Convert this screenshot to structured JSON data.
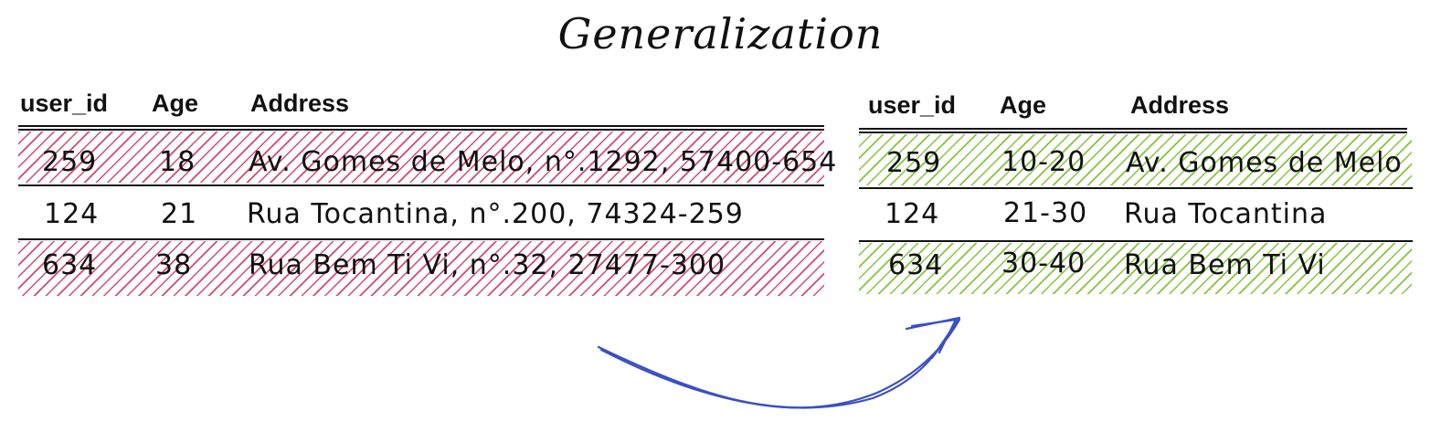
{
  "title": "Generalization",
  "colors": {
    "original_hatch": "#cd2855",
    "generalized_hatch": "#78be28",
    "arrow": "#3a4fc4",
    "ink": "#111111"
  },
  "original_table": {
    "headers": [
      "user_id",
      "Age",
      "Address"
    ],
    "rows": [
      {
        "user_id": "259",
        "age": "18",
        "address": "Av. Gomes de Melo, n°.1292, 57400-654"
      },
      {
        "user_id": "124",
        "age": "21",
        "address": "Rua Tocantina, n°.200, 74324-259"
      },
      {
        "user_id": "634",
        "age": "38",
        "address": "Rua Bem Ti Vi, n°.32, 27477-300"
      }
    ]
  },
  "generalized_table": {
    "headers": [
      "user_id",
      "Age",
      "Address"
    ],
    "rows": [
      {
        "user_id": "259",
        "age": "10-20",
        "address": "Av. Gomes de Melo"
      },
      {
        "user_id": "124",
        "age": "21-30",
        "address": "Rua Tocantina"
      },
      {
        "user_id": "634",
        "age": "30-40",
        "address": "Rua Bem Ti Vi"
      }
    ]
  },
  "arrow_icon": "curved-arrow-right"
}
